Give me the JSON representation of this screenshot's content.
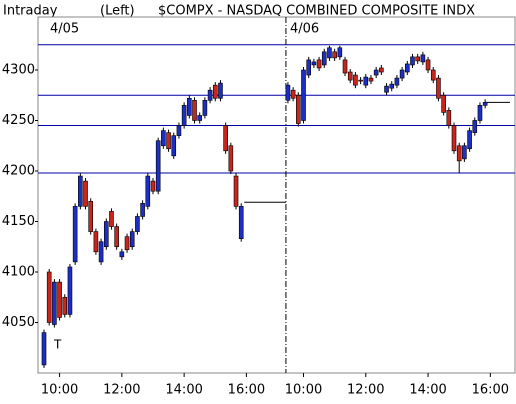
{
  "chart_data": {
    "type": "candlestick",
    "title": "$COMPX - NASDAQ COMBINED COMPOSITE INDX",
    "label_left": "Intraday",
    "label_axis": "(Left)",
    "dates": [
      "4/05",
      "4/06"
    ],
    "marker": "T",
    "categories": [
      null,
      null,
      null,
      "10:00",
      null,
      null,
      null,
      null,
      null,
      null,
      null,
      null,
      null,
      null,
      null,
      "12:00",
      null,
      null,
      null,
      null,
      null,
      null,
      null,
      null,
      null,
      null,
      null,
      "14:00",
      null,
      null,
      null,
      null,
      null,
      null,
      null,
      null,
      null,
      null,
      null,
      "16:00",
      null,
      null,
      null,
      null,
      null,
      null,
      null,
      null,
      null,
      null,
      "10:00",
      null,
      null,
      null,
      null,
      null,
      null,
      null,
      null,
      null,
      null,
      null,
      "12:00",
      null,
      null,
      null,
      null,
      null,
      null,
      null,
      null,
      null,
      null,
      null,
      "14:00",
      null,
      null,
      null,
      null,
      null,
      null,
      null,
      null,
      null,
      null,
      null,
      "16:00",
      null,
      null,
      null,
      null
    ],
    "open": [
      4008,
      4100,
      4048,
      4090,
      4075,
      4058,
      4110,
      4165,
      4190,
      4170,
      4140,
      4110,
      4125,
      4160,
      4145,
      4115,
      4135,
      4125,
      4140,
      4155,
      4165,
      4190,
      4180,
      4225,
      4238,
      4215,
      4235,
      4245,
      4255,
      4270,
      4250,
      4255,
      4270,
      4285,
      4272,
      4245,
      4225,
      4195,
      4133,
      null,
      null,
      null,
      null,
      null,
      null,
      null,
      null,
      4270,
      4280,
      4275,
      4250,
      4295,
      4305,
      4310,
      4305,
      4312,
      4318,
      4313,
      4310,
      4298,
      4295,
      4290,
      4285,
      4292,
      4295,
      4302,
      4278,
      4282,
      4285,
      4292,
      4298,
      4305,
      4313,
      4308,
      4310,
      4300,
      4292,
      4275,
      4260,
      4245,
      4225,
      4212,
      4222,
      4238,
      4250,
      4265,
      null,
      null,
      null,
      null,
      null
    ],
    "high": [
      4043,
      4103,
      4093,
      4093,
      4078,
      4108,
      4168,
      4198,
      4193,
      4173,
      4143,
      4133,
      4153,
      4163,
      4148,
      4123,
      4138,
      4143,
      4158,
      4171,
      4198,
      4193,
      4233,
      4243,
      4241,
      4238,
      4248,
      4268,
      4275,
      4273,
      4258,
      4273,
      4283,
      4288,
      4290,
      4248,
      4228,
      4198,
      4168,
      null,
      null,
      null,
      null,
      null,
      null,
      null,
      null,
      4288,
      4283,
      4278,
      4303,
      4313,
      4311,
      4313,
      4321,
      4324,
      4321,
      4324,
      4313,
      4301,
      4298,
      4293,
      4296,
      4295,
      4303,
      4305,
      4287,
      4289,
      4295,
      4303,
      4309,
      4316,
      4316,
      4318,
      4313,
      4303,
      4295,
      4278,
      4263,
      4248,
      4228,
      4228,
      4243,
      4253,
      4268,
      4271,
      null,
      null,
      null,
      null,
      null
    ],
    "low": [
      4005,
      4047,
      4045,
      4052,
      4055,
      4055,
      4107,
      4162,
      4162,
      4137,
      4117,
      4107,
      4122,
      4142,
      4122,
      4112,
      4119,
      4122,
      4137,
      4152,
      4162,
      4177,
      4177,
      4222,
      4219,
      4212,
      4232,
      4242,
      4252,
      4247,
      4247,
      4252,
      4267,
      4269,
      4269,
      4217,
      4197,
      4162,
      4130,
      null,
      null,
      null,
      null,
      null,
      null,
      null,
      null,
      4267,
      4269,
      4244,
      4247,
      4292,
      4302,
      4299,
      4302,
      4309,
      4309,
      4310,
      4294,
      4287,
      4282,
      4286,
      4282,
      4286,
      4292,
      4295,
      4275,
      4279,
      4282,
      4289,
      4295,
      4302,
      4306,
      4305,
      4297,
      4287,
      4269,
      4255,
      4242,
      4217,
      4198,
      4209,
      4219,
      4235,
      4247,
      4262,
      null,
      null,
      null,
      null,
      null
    ],
    "close": [
      4040,
      4050,
      4090,
      4055,
      4058,
      4105,
      4165,
      4195,
      4165,
      4140,
      4120,
      4130,
      4150,
      4145,
      4125,
      4120,
      4122,
      4140,
      4155,
      4168,
      4195,
      4180,
      4230,
      4240,
      4222,
      4235,
      4245,
      4265,
      4272,
      4250,
      4255,
      4270,
      4280,
      4272,
      4287,
      4220,
      4200,
      4165,
      4165,
      null,
      null,
      null,
      null,
      null,
      null,
      null,
      null,
      4285,
      4272,
      4247,
      4300,
      4310,
      4308,
      4302,
      4318,
      4322,
      4312,
      4322,
      4297,
      4290,
      4285,
      4289,
      4293,
      4289,
      4300,
      4298,
      4284,
      4286,
      4292,
      4300,
      4306,
      4313,
      4309,
      4315,
      4300,
      4290,
      4272,
      4258,
      4245,
      4220,
      4210,
      4225,
      4240,
      4250,
      4265,
      4268,
      null,
      null,
      null,
      null,
      null
    ],
    "up_color": "#1c2ec4",
    "down_color": "#c8261c",
    "levels": [
      4325,
      4275,
      4245,
      4198
    ],
    "level_color": "#0000a8",
    "prev_close": 4169,
    "last_price": 4268,
    "ylim": [
      4000,
      4350
    ],
    "yticks": [
      4050,
      4100,
      4150,
      4200,
      4250,
      4300
    ]
  }
}
